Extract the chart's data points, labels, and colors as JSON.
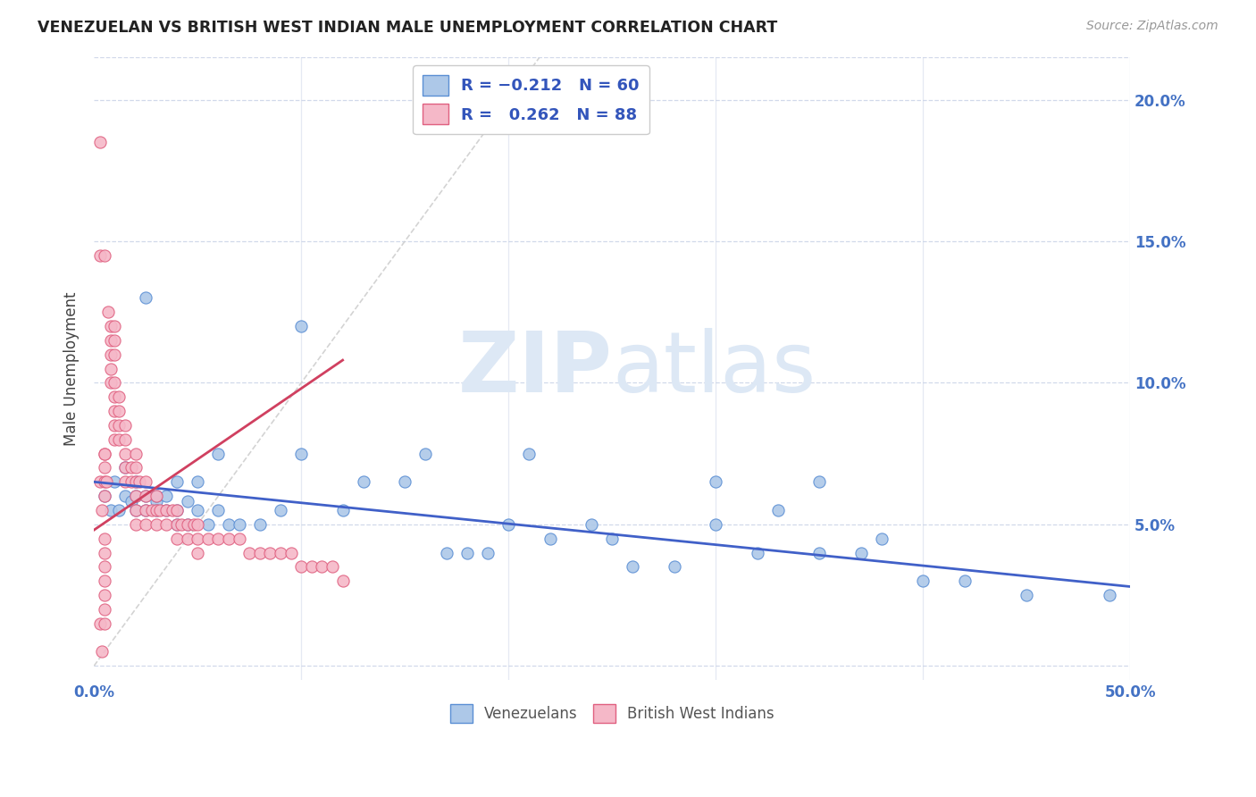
{
  "title": "VENEZUELAN VS BRITISH WEST INDIAN MALE UNEMPLOYMENT CORRELATION CHART",
  "source": "Source: ZipAtlas.com",
  "ylabel": "Male Unemployment",
  "y_ticks": [
    0.0,
    0.05,
    0.1,
    0.15,
    0.2
  ],
  "y_tick_labels": [
    "",
    "5.0%",
    "10.0%",
    "15.0%",
    "20.0%"
  ],
  "x_ticks": [
    0.0,
    0.1,
    0.2,
    0.3,
    0.4,
    0.5
  ],
  "x_tick_labels": [
    "0.0%",
    "",
    "",
    "",
    "",
    "50.0%"
  ],
  "xlim": [
    0.0,
    0.5
  ],
  "ylim": [
    -0.005,
    0.215
  ],
  "blue_R": -0.212,
  "blue_N": 60,
  "pink_R": 0.262,
  "pink_N": 88,
  "blue_scatter_color": "#adc8e8",
  "blue_edge_color": "#5b8fd4",
  "pink_scatter_color": "#f5b8c8",
  "pink_edge_color": "#e06080",
  "blue_line_color": "#4060c8",
  "pink_line_color": "#d04060",
  "diagonal_color": "#cccccc",
  "watermark_color": "#dde8f5",
  "legend_blue_label": "Venezuelans",
  "legend_pink_label": "British West Indians",
  "blue_scatter_x": [
    0.005,
    0.008,
    0.01,
    0.012,
    0.015,
    0.015,
    0.018,
    0.02,
    0.02,
    0.02,
    0.025,
    0.025,
    0.025,
    0.03,
    0.03,
    0.03,
    0.035,
    0.035,
    0.04,
    0.04,
    0.04,
    0.045,
    0.045,
    0.05,
    0.05,
    0.055,
    0.06,
    0.06,
    0.065,
    0.07,
    0.08,
    0.09,
    0.1,
    0.1,
    0.12,
    0.13,
    0.15,
    0.16,
    0.17,
    0.18,
    0.19,
    0.2,
    0.21,
    0.22,
    0.24,
    0.25,
    0.26,
    0.28,
    0.3,
    0.3,
    0.32,
    0.33,
    0.35,
    0.35,
    0.37,
    0.38,
    0.4,
    0.42,
    0.45,
    0.49
  ],
  "blue_scatter_y": [
    0.06,
    0.055,
    0.065,
    0.055,
    0.06,
    0.07,
    0.058,
    0.055,
    0.06,
    0.065,
    0.055,
    0.06,
    0.13,
    0.058,
    0.055,
    0.06,
    0.055,
    0.06,
    0.05,
    0.055,
    0.065,
    0.05,
    0.058,
    0.055,
    0.065,
    0.05,
    0.055,
    0.075,
    0.05,
    0.05,
    0.05,
    0.055,
    0.075,
    0.12,
    0.055,
    0.065,
    0.065,
    0.075,
    0.04,
    0.04,
    0.04,
    0.05,
    0.075,
    0.045,
    0.05,
    0.045,
    0.035,
    0.035,
    0.05,
    0.065,
    0.04,
    0.055,
    0.04,
    0.065,
    0.04,
    0.045,
    0.03,
    0.03,
    0.025,
    0.025
  ],
  "pink_scatter_x": [
    0.003,
    0.003,
    0.003,
    0.003,
    0.004,
    0.004,
    0.005,
    0.005,
    0.005,
    0.005,
    0.005,
    0.005,
    0.005,
    0.006,
    0.007,
    0.008,
    0.008,
    0.008,
    0.008,
    0.008,
    0.01,
    0.01,
    0.01,
    0.01,
    0.01,
    0.01,
    0.01,
    0.01,
    0.012,
    0.012,
    0.012,
    0.012,
    0.015,
    0.015,
    0.015,
    0.015,
    0.015,
    0.018,
    0.018,
    0.02,
    0.02,
    0.02,
    0.02,
    0.02,
    0.02,
    0.022,
    0.025,
    0.025,
    0.025,
    0.025,
    0.028,
    0.03,
    0.03,
    0.03,
    0.032,
    0.035,
    0.035,
    0.038,
    0.04,
    0.04,
    0.04,
    0.042,
    0.045,
    0.045,
    0.048,
    0.05,
    0.05,
    0.05,
    0.055,
    0.06,
    0.065,
    0.07,
    0.075,
    0.08,
    0.085,
    0.09,
    0.095,
    0.1,
    0.105,
    0.11,
    0.115,
    0.12,
    0.005,
    0.005,
    0.005,
    0.005,
    0.005,
    0.005
  ],
  "pink_scatter_y": [
    0.185,
    0.145,
    0.065,
    0.015,
    0.055,
    0.005,
    0.145,
    0.075,
    0.075,
    0.07,
    0.065,
    0.06,
    0.045,
    0.065,
    0.125,
    0.12,
    0.115,
    0.11,
    0.105,
    0.1,
    0.12,
    0.115,
    0.11,
    0.1,
    0.095,
    0.09,
    0.085,
    0.08,
    0.095,
    0.09,
    0.085,
    0.08,
    0.085,
    0.08,
    0.075,
    0.07,
    0.065,
    0.07,
    0.065,
    0.075,
    0.07,
    0.065,
    0.06,
    0.055,
    0.05,
    0.065,
    0.065,
    0.06,
    0.055,
    0.05,
    0.055,
    0.06,
    0.055,
    0.05,
    0.055,
    0.055,
    0.05,
    0.055,
    0.055,
    0.05,
    0.045,
    0.05,
    0.05,
    0.045,
    0.05,
    0.05,
    0.045,
    0.04,
    0.045,
    0.045,
    0.045,
    0.045,
    0.04,
    0.04,
    0.04,
    0.04,
    0.04,
    0.035,
    0.035,
    0.035,
    0.035,
    0.03,
    0.015,
    0.02,
    0.025,
    0.03,
    0.035,
    0.04
  ],
  "blue_line_x": [
    0.0,
    0.5
  ],
  "blue_line_y": [
    0.065,
    0.028
  ],
  "pink_line_x": [
    0.0,
    0.12
  ],
  "pink_line_y": [
    0.048,
    0.108
  ],
  "diag_line_x": [
    0.0,
    0.215
  ],
  "diag_line_y": [
    0.0,
    0.215
  ]
}
